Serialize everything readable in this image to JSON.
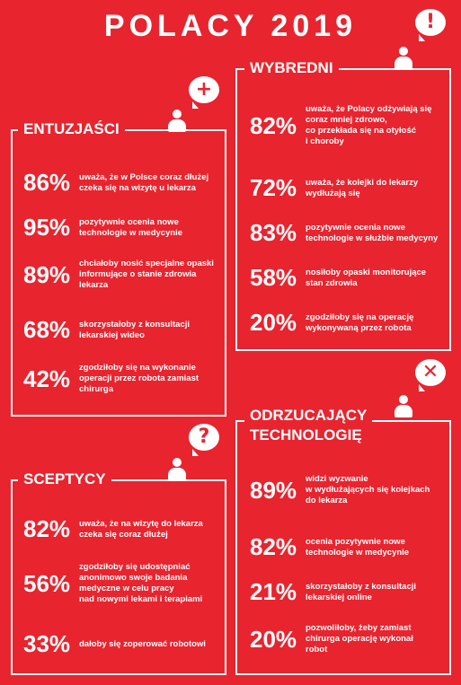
{
  "title": "POLACY 2019",
  "colors": {
    "background": "#e8242f",
    "foreground": "#ffffff"
  },
  "groups": [
    {
      "name": "ENTUZJAŚCI",
      "icon": "plus-icon",
      "stats": [
        {
          "pct": "86%",
          "text": [
            "uważa, że w Polsce coraz dłużej",
            "czeka się na wizytę u lekarza"
          ]
        },
        {
          "pct": "95%",
          "text": [
            "pozytywnie ocenia nowe",
            "technologie w medycynie"
          ]
        },
        {
          "pct": "89%",
          "text": [
            "chciałoby nosić specjalne opaski",
            "informujące o stanie zdrowia",
            "lekarza"
          ]
        },
        {
          "pct": "68%",
          "text": [
            "skorzystałoby z konsultacji",
            "lekarskiej wideo"
          ]
        },
        {
          "pct": "42%",
          "text": [
            "zgodziłoby się na wykonanie",
            "operacji przez robota zamiast",
            "chirurga"
          ]
        }
      ]
    },
    {
      "name": "WYBREDNI",
      "icon": "exclamation-icon",
      "stats": [
        {
          "pct": "82%",
          "text": [
            "uważa, że Polacy odżywiają się",
            "coraz mniej zdrowo,",
            "co przekłada się na otyłość",
            "i choroby"
          ]
        },
        {
          "pct": "72%",
          "text": [
            "uważa, że kolejki do lekarzy",
            "wydłużają się"
          ]
        },
        {
          "pct": "83%",
          "text": [
            "pozytywnie ocenia nowe",
            "technologie w służbie medycyny"
          ]
        },
        {
          "pct": "58%",
          "text": [
            "nosiłoby opaski monitorujące",
            "stan zdrowia"
          ]
        },
        {
          "pct": "20%",
          "text": [
            "zgodziłoby się na operację",
            "wykonywaną przez robota"
          ]
        }
      ]
    },
    {
      "name": "SCEPTYCY",
      "icon": "question-icon",
      "stats": [
        {
          "pct": "82%",
          "text": [
            "uważa, że na wizytę do lekarza",
            "czeka się coraz dłużej"
          ]
        },
        {
          "pct": "56%",
          "text": [
            "zgodziłoby się udostępniać",
            "anonimowo swoje badania",
            "medyczne w celu pracy",
            "nad nowymi lekami i terapiami"
          ]
        },
        {
          "pct": "33%",
          "text": [
            "dałoby się zoperować robotowi"
          ]
        }
      ]
    },
    {
      "name": [
        "ODRZUCAJĄCY",
        "TECHNOLOGIĘ"
      ],
      "icon": "cross-icon",
      "stats": [
        {
          "pct": "89%",
          "text": [
            "widzi wyzwanie",
            "w wydłużających się kolejkach",
            "do lekarza"
          ]
        },
        {
          "pct": "82%",
          "text": [
            "ocenia pozytywnie nowe",
            "technologie w medycynie"
          ]
        },
        {
          "pct": "21%",
          "text": [
            "skorzystałoby z konsultacji",
            "lekarskiej online"
          ]
        },
        {
          "pct": "20%",
          "text": [
            "pozwoliłoby, żeby zamiast",
            "chirurga operację wykonał",
            "robot"
          ]
        }
      ]
    }
  ]
}
